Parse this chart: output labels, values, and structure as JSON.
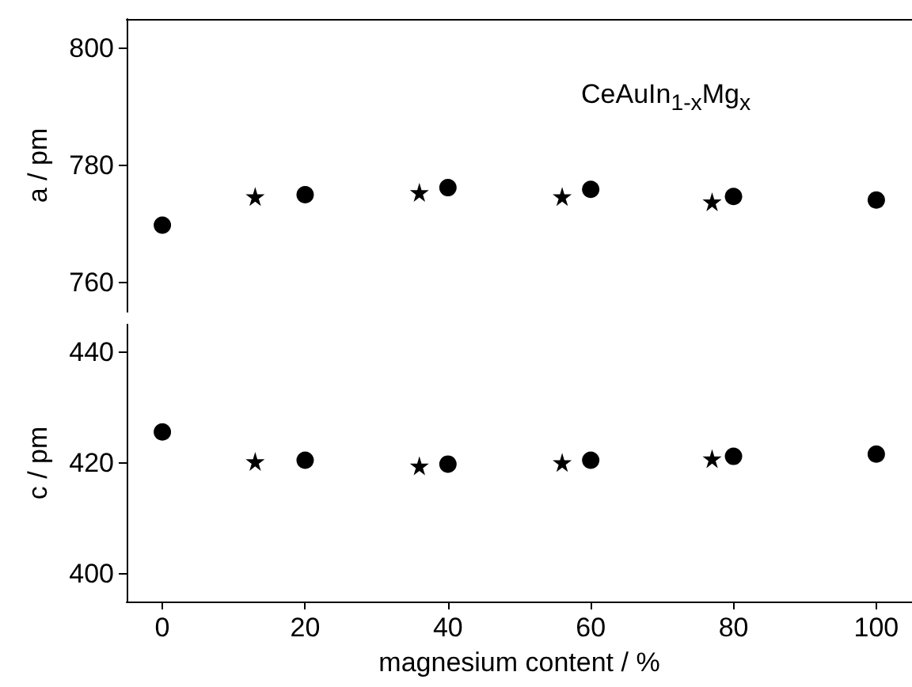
{
  "chart_data": [
    {
      "type": "scatter",
      "ylabel": "a / pm",
      "annotations": [
        "CeAuIn$_{1-x}$Mg$_{x}$"
      ],
      "xlim": [
        -5,
        105
      ],
      "ylim": [
        755,
        805
      ],
      "yticks": [
        760,
        780,
        800
      ],
      "tick_labels": "y",
      "series": [
        {
          "color": "#000000",
          "marker": "circle",
          "x": [
            0,
            20,
            40,
            60,
            80,
            100
          ],
          "values": [
            769.8,
            775.0,
            776.2,
            775.9,
            774.7,
            774.1
          ]
        },
        {
          "color": "#000000",
          "marker": "star",
          "x": [
            13,
            36,
            56,
            77
          ],
          "values": [
            774.7,
            775.4,
            774.7,
            773.8
          ]
        }
      ]
    },
    {
      "type": "scatter",
      "ylabel": "c / pm",
      "xlabel": "magnesium content / %",
      "xlim": [
        -5,
        105
      ],
      "xticks": [
        0,
        20,
        40,
        60,
        80,
        100
      ],
      "ylim": [
        395,
        445
      ],
      "yticks": [
        400,
        420,
        440
      ],
      "series": [
        {
          "color": "#000000",
          "marker": "circle",
          "x": [
            0,
            20,
            40,
            60,
            80,
            100
          ],
          "values": [
            425.6,
            420.5,
            419.8,
            420.5,
            421.2,
            421.6
          ]
        },
        {
          "color": "#000000",
          "marker": "star",
          "x": [
            13,
            36,
            56,
            77
          ],
          "values": [
            420.3,
            419.5,
            420.1,
            420.8
          ]
        }
      ]
    }
  ]
}
